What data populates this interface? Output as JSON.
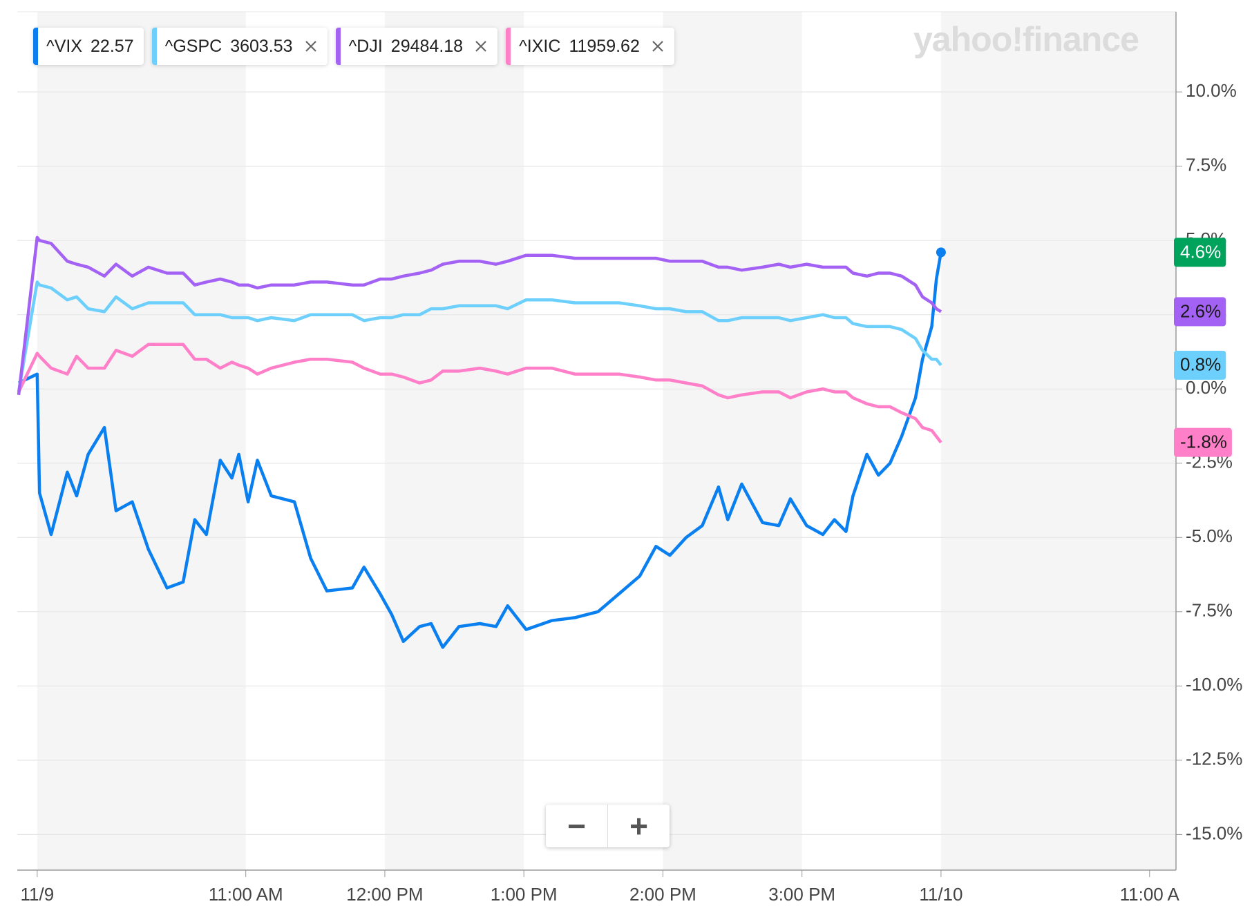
{
  "chart_data": {
    "type": "line",
    "watermark": "yahoo!finance",
    "zoom_controls": [
      "−",
      "+"
    ],
    "x": [
      -8,
      0,
      1,
      6,
      13,
      17,
      22,
      29,
      34,
      41,
      48,
      56,
      63,
      68,
      73,
      79,
      84,
      87,
      91,
      95,
      101,
      111,
      118,
      125,
      136,
      141,
      148,
      153,
      158,
      165,
      170,
      175,
      182,
      191,
      198,
      203,
      211,
      222,
      232,
      242,
      251,
      260,
      267,
      273,
      280,
      287,
      294,
      298,
      304,
      313,
      320,
      325,
      332,
      339,
      344,
      349,
      352,
      358,
      363,
      368,
      373,
      379,
      382,
      386,
      388,
      390
    ],
    "xlim": [
      -8.6,
      491.4
    ],
    "xticks": [
      {
        "value": 0,
        "label": "11/9"
      },
      {
        "value": 90,
        "label": "11:00 AM"
      },
      {
        "value": 150,
        "label": "12:00 PM"
      },
      {
        "value": 210,
        "label": "1:00 PM"
      },
      {
        "value": 270,
        "label": "2:00 PM"
      },
      {
        "value": 330,
        "label": "3:00 PM"
      },
      {
        "value": 390,
        "label": "11/10"
      },
      {
        "value": 480,
        "label": "11:00 A"
      }
    ],
    "ylim": [
      -16.2,
      12.7
    ],
    "yticks": [
      {
        "value": 10,
        "label": "10.0%"
      },
      {
        "value": 7.5,
        "label": "7.5%"
      },
      {
        "value": 5,
        "label": "5.0%"
      },
      {
        "value": 2.5,
        "label": "2.5%"
      },
      {
        "value": 0,
        "label": "0.0%"
      },
      {
        "value": -2.5,
        "label": "-2.5%"
      },
      {
        "value": -5,
        "label": "-5.0%"
      },
      {
        "value": -7.5,
        "label": "-7.5%"
      },
      {
        "value": -10,
        "label": "-10.0%"
      },
      {
        "value": -12.5,
        "label": "-12.5%"
      },
      {
        "value": -15,
        "label": "-15.0%"
      }
    ],
    "grid": true,
    "series": [
      {
        "name": "^VIX",
        "price": "22.57",
        "color": "#0a7ff0",
        "badge_color": "#00a35c",
        "badge_text_color": "#ffffff",
        "closable": false,
        "end_marker": true,
        "values": [
          0.2,
          0.5,
          -3.5,
          -4.9,
          -2.8,
          -3.6,
          -2.2,
          -1.3,
          -4.1,
          -3.8,
          -5.4,
          -6.7,
          -6.5,
          -4.4,
          -4.9,
          -2.4,
          -3.0,
          -2.2,
          -3.8,
          -2.4,
          -3.6,
          -3.8,
          -5.7,
          -6.8,
          -6.7,
          -6.0,
          -6.9,
          -7.6,
          -8.5,
          -8.0,
          -7.9,
          -8.7,
          -8.0,
          -7.9,
          -8.0,
          -7.3,
          -8.1,
          -7.8,
          -7.7,
          -7.5,
          -6.9,
          -6.3,
          -5.3,
          -5.6,
          -5.0,
          -4.6,
          -3.3,
          -4.4,
          -3.2,
          -4.5,
          -4.6,
          -3.7,
          -4.6,
          -4.9,
          -4.4,
          -4.8,
          -3.6,
          -2.2,
          -2.9,
          -2.5,
          -1.6,
          -0.3,
          1.0,
          2.1,
          3.7,
          4.6
        ],
        "value_labels": [
          null,
          null,
          null,
          null,
          null,
          null,
          null,
          null,
          null,
          null,
          null,
          null,
          null,
          null,
          null,
          null,
          null,
          null,
          null,
          null,
          null,
          null,
          null,
          null,
          null,
          null,
          null,
          null,
          null,
          null,
          null,
          null,
          null,
          null,
          null,
          null,
          null,
          null,
          null,
          null,
          null,
          null,
          null,
          null,
          null,
          null,
          null,
          null,
          null,
          null,
          null,
          null,
          null,
          null,
          null,
          null,
          null,
          null,
          null,
          null,
          null,
          null,
          null,
          null,
          null,
          "4.6%"
        ]
      },
      {
        "name": "^GSPC",
        "price": "3603.53",
        "color": "#6dd0fc",
        "badge_color": "#6dd0fc",
        "badge_text_color": "#1a1a1a",
        "closable": true,
        "end_marker": false,
        "values": [
          -0.1,
          3.6,
          3.5,
          3.4,
          3.0,
          3.1,
          2.7,
          2.6,
          3.1,
          2.7,
          2.9,
          2.9,
          2.9,
          2.5,
          2.5,
          2.5,
          2.4,
          2.4,
          2.4,
          2.3,
          2.4,
          2.3,
          2.5,
          2.5,
          2.5,
          2.3,
          2.4,
          2.4,
          2.5,
          2.5,
          2.7,
          2.7,
          2.8,
          2.8,
          2.8,
          2.7,
          3.0,
          3.0,
          2.9,
          2.9,
          2.9,
          2.8,
          2.7,
          2.7,
          2.6,
          2.6,
          2.3,
          2.3,
          2.4,
          2.4,
          2.4,
          2.3,
          2.4,
          2.5,
          2.4,
          2.4,
          2.2,
          2.1,
          2.1,
          2.1,
          2.0,
          1.7,
          1.3,
          1.0,
          1.0,
          0.8
        ],
        "value_labels": [
          null,
          null,
          null,
          null,
          null,
          null,
          null,
          null,
          null,
          null,
          null,
          null,
          null,
          null,
          null,
          null,
          null,
          null,
          null,
          null,
          null,
          null,
          null,
          null,
          null,
          null,
          null,
          null,
          null,
          null,
          null,
          null,
          null,
          null,
          null,
          null,
          null,
          null,
          null,
          null,
          null,
          null,
          null,
          null,
          null,
          null,
          null,
          null,
          null,
          null,
          null,
          null,
          null,
          null,
          null,
          null,
          null,
          null,
          null,
          null,
          null,
          null,
          null,
          null,
          null,
          "0.8%"
        ]
      },
      {
        "name": "^DJI",
        "price": "29484.18",
        "color": "#a462f5",
        "badge_color": "#a462f5",
        "badge_text_color": "#1a1a1a",
        "closable": true,
        "end_marker": false,
        "values": [
          -0.2,
          5.1,
          5.0,
          4.9,
          4.3,
          4.2,
          4.1,
          3.8,
          4.2,
          3.8,
          4.1,
          3.9,
          3.9,
          3.5,
          3.6,
          3.7,
          3.6,
          3.5,
          3.5,
          3.4,
          3.5,
          3.5,
          3.6,
          3.6,
          3.5,
          3.5,
          3.7,
          3.7,
          3.8,
          3.9,
          4.0,
          4.2,
          4.3,
          4.3,
          4.2,
          4.3,
          4.5,
          4.5,
          4.4,
          4.4,
          4.4,
          4.4,
          4.4,
          4.3,
          4.3,
          4.3,
          4.1,
          4.1,
          4.0,
          4.1,
          4.2,
          4.1,
          4.2,
          4.1,
          4.1,
          4.1,
          3.9,
          3.8,
          3.9,
          3.9,
          3.8,
          3.5,
          3.1,
          2.9,
          2.7,
          2.6
        ],
        "value_labels": [
          null,
          null,
          null,
          null,
          null,
          null,
          null,
          null,
          null,
          null,
          null,
          null,
          null,
          null,
          null,
          null,
          null,
          null,
          null,
          null,
          null,
          null,
          null,
          null,
          null,
          null,
          null,
          null,
          null,
          null,
          null,
          null,
          null,
          null,
          null,
          null,
          null,
          null,
          null,
          null,
          null,
          null,
          null,
          null,
          null,
          null,
          null,
          null,
          null,
          null,
          null,
          null,
          null,
          null,
          null,
          null,
          null,
          null,
          null,
          null,
          null,
          null,
          null,
          null,
          null,
          "2.6%"
        ]
      },
      {
        "name": "^IXIC",
        "price": "11959.62",
        "color": "#ff7fc8",
        "badge_color": "#ff7fc8",
        "badge_text_color": "#1a1a1a",
        "closable": true,
        "end_marker": false,
        "values": [
          -0.1,
          1.2,
          1.1,
          0.7,
          0.5,
          1.1,
          0.7,
          0.7,
          1.3,
          1.1,
          1.5,
          1.5,
          1.5,
          1.0,
          1.0,
          0.7,
          0.9,
          0.8,
          0.7,
          0.5,
          0.7,
          0.9,
          1.0,
          1.0,
          0.9,
          0.7,
          0.5,
          0.5,
          0.4,
          0.2,
          0.3,
          0.6,
          0.6,
          0.7,
          0.6,
          0.5,
          0.7,
          0.7,
          0.5,
          0.5,
          0.5,
          0.4,
          0.3,
          0.3,
          0.2,
          0.1,
          -0.2,
          -0.3,
          -0.2,
          -0.1,
          -0.1,
          -0.3,
          -0.1,
          0.0,
          -0.1,
          -0.1,
          -0.3,
          -0.5,
          -0.6,
          -0.6,
          -0.8,
          -1.0,
          -1.3,
          -1.4,
          -1.6,
          -1.8
        ],
        "value_labels": [
          null,
          null,
          null,
          null,
          null,
          null,
          null,
          null,
          null,
          null,
          null,
          null,
          null,
          null,
          null,
          null,
          null,
          null,
          null,
          null,
          null,
          null,
          null,
          null,
          null,
          null,
          null,
          null,
          null,
          null,
          null,
          null,
          null,
          null,
          null,
          null,
          null,
          null,
          null,
          null,
          null,
          null,
          null,
          null,
          null,
          null,
          null,
          null,
          null,
          null,
          null,
          null,
          null,
          null,
          null,
          null,
          null,
          null,
          null,
          null,
          null,
          null,
          null,
          null,
          null,
          "-1.8%"
        ]
      }
    ]
  }
}
